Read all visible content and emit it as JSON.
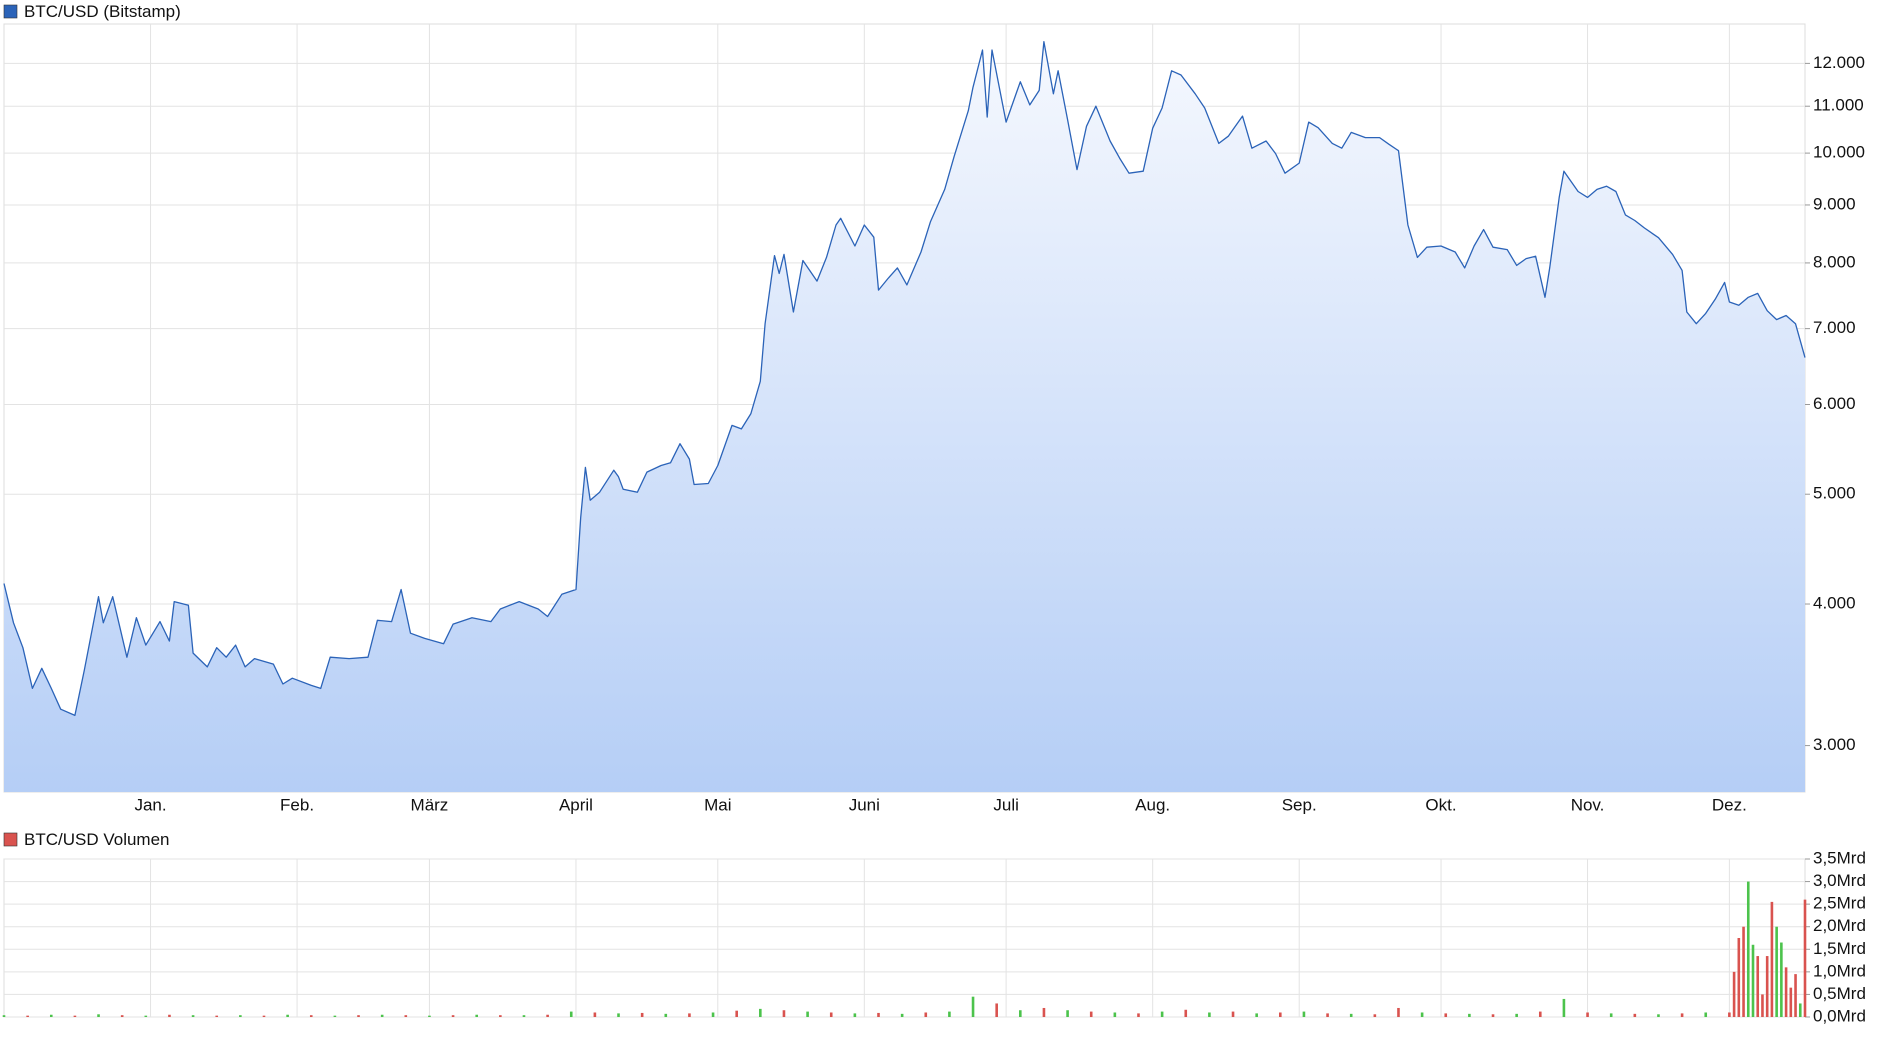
{
  "chart_data": [
    {
      "type": "area",
      "log_scale": true,
      "grid": true,
      "xlim": [
        0,
        381
      ],
      "xticks": [
        {
          "value": 31,
          "label": "Jan."
        },
        {
          "value": 62,
          "label": "Feb."
        },
        {
          "value": 90,
          "label": "März"
        },
        {
          "value": 121,
          "label": "April"
        },
        {
          "value": 151,
          "label": "Mai"
        },
        {
          "value": 182,
          "label": "Juni"
        },
        {
          "value": 212,
          "label": "Juli"
        },
        {
          "value": 243,
          "label": "Aug."
        },
        {
          "value": 274,
          "label": "Sep."
        },
        {
          "value": 304,
          "label": "Okt."
        },
        {
          "value": 335,
          "label": "Nov."
        },
        {
          "value": 365,
          "label": "Dez."
        }
      ],
      "ylim": [
        2730,
        13000
      ],
      "yticks": [
        {
          "value": 3000,
          "label": "3.000"
        },
        {
          "value": 4000,
          "label": "4.000"
        },
        {
          "value": 5000,
          "label": "5.000"
        },
        {
          "value": 6000,
          "label": "6.000"
        },
        {
          "value": 7000,
          "label": "7.000"
        },
        {
          "value": 8000,
          "label": "8.000"
        },
        {
          "value": 9000,
          "label": "9.000"
        },
        {
          "value": 10000,
          "label": "10.000"
        },
        {
          "value": 11000,
          "label": "11.000"
        },
        {
          "value": 12000,
          "label": "12.000"
        }
      ],
      "series": [
        {
          "name": "BTC/USD (Bitstamp)",
          "color": "#2b63b8",
          "x": [
            0,
            2,
            4,
            6,
            8,
            10,
            12,
            15,
            17,
            20,
            21,
            23,
            26,
            28,
            30,
            33,
            35,
            36,
            39,
            40,
            43,
            45,
            47,
            49,
            51,
            53,
            57,
            59,
            61,
            65,
            67,
            69,
            73,
            77,
            79,
            82,
            84,
            86,
            89,
            93,
            95,
            99,
            103,
            105,
            109,
            113,
            115,
            118,
            121,
            122,
            123,
            124,
            126,
            129,
            130,
            131,
            134,
            136,
            139,
            141,
            143,
            145,
            146,
            149,
            151,
            154,
            156,
            158,
            160,
            161,
            163,
            164,
            165,
            167,
            169,
            172,
            174,
            176,
            177,
            180,
            182,
            184,
            185,
            187,
            189,
            191,
            194,
            196,
            199,
            201,
            204,
            205,
            207,
            208,
            209,
            212,
            214,
            215,
            217,
            219,
            220,
            222,
            223,
            225,
            227,
            229,
            231,
            234,
            236,
            238,
            241,
            243,
            245,
            247,
            249,
            252,
            254,
            257,
            259,
            262,
            264,
            267,
            269,
            271,
            274,
            276,
            278,
            281,
            283,
            285,
            288,
            291,
            293,
            295,
            297,
            299,
            301,
            304,
            307,
            309,
            311,
            313,
            315,
            318,
            320,
            322,
            324,
            326,
            327,
            329,
            330,
            333,
            335,
            337,
            339,
            341,
            343,
            345,
            347,
            350,
            353,
            355,
            356,
            358,
            360,
            362,
            364,
            365,
            367,
            369,
            371,
            373,
            375,
            377,
            379,
            381
          ],
          "values": [
            4170,
            3850,
            3660,
            3370,
            3510,
            3370,
            3230,
            3190,
            3500,
            4060,
            3850,
            4060,
            3590,
            3890,
            3680,
            3860,
            3710,
            4020,
            3990,
            3620,
            3520,
            3660,
            3590,
            3680,
            3520,
            3580,
            3540,
            3400,
            3440,
            3390,
            3370,
            3590,
            3580,
            3590,
            3870,
            3860,
            4120,
            3770,
            3730,
            3690,
            3840,
            3890,
            3860,
            3960,
            4020,
            3960,
            3900,
            4080,
            4120,
            4770,
            5280,
            4940,
            5020,
            5250,
            5180,
            5050,
            5020,
            5230,
            5300,
            5330,
            5540,
            5370,
            5100,
            5110,
            5300,
            5750,
            5710,
            5890,
            6290,
            7070,
            8120,
            7830,
            8140,
            7240,
            8040,
            7710,
            8090,
            8640,
            8760,
            8280,
            8640,
            8430,
            7570,
            7750,
            7920,
            7650,
            8180,
            8700,
            9290,
            9930,
            10900,
            11430,
            12330,
            10760,
            12330,
            10650,
            11250,
            11560,
            11030,
            11360,
            12540,
            11280,
            11820,
            10700,
            9670,
            10560,
            11000,
            10250,
            9900,
            9600,
            9640,
            10520,
            10960,
            11820,
            11720,
            11280,
            10960,
            10200,
            10350,
            10780,
            10100,
            10250,
            9990,
            9600,
            9800,
            10650,
            10530,
            10200,
            10100,
            10430,
            10320,
            10320,
            10180,
            10050,
            8640,
            8090,
            8260,
            8280,
            8180,
            7920,
            8280,
            8560,
            8260,
            8220,
            7960,
            8070,
            8110,
            7460,
            7920,
            9140,
            9640,
            9250,
            9140,
            9290,
            9350,
            9250,
            8820,
            8720,
            8590,
            8420,
            8140,
            7880,
            7240,
            7070,
            7220,
            7430,
            7690,
            7390,
            7340,
            7460,
            7520,
            7260,
            7130,
            7190,
            7070,
            6600
          ]
        }
      ]
    },
    {
      "type": "bar",
      "grid": true,
      "xlim": [
        0,
        381
      ],
      "ylim": [
        0,
        3.5
      ],
      "yticks": [
        {
          "value": 0,
          "label": "0,0Mrd"
        },
        {
          "value": 0.5,
          "label": "0,5Mrd"
        },
        {
          "value": 1,
          "label": "1,0Mrd"
        },
        {
          "value": 1.5,
          "label": "1,5Mrd"
        },
        {
          "value": 2,
          "label": "2,0Mrd"
        },
        {
          "value": 2.5,
          "label": "2,5Mrd"
        },
        {
          "value": 3,
          "label": "3,0Mrd"
        },
        {
          "value": 3.5,
          "label": "3,5Mrd"
        }
      ],
      "series": [
        {
          "name": "BTC/USD Volumen",
          "color": "#d9534f",
          "x": [
            0,
            5,
            10,
            15,
            20,
            25,
            30,
            35,
            40,
            45,
            50,
            55,
            60,
            65,
            70,
            75,
            80,
            85,
            90,
            95,
            100,
            105,
            110,
            115,
            120,
            125,
            130,
            135,
            140,
            145,
            150,
            155,
            160,
            165,
            170,
            175,
            180,
            185,
            190,
            195,
            200,
            205,
            210,
            215,
            220,
            225,
            230,
            235,
            240,
            245,
            250,
            255,
            260,
            265,
            270,
            275,
            280,
            285,
            290,
            295,
            300,
            305,
            310,
            315,
            320,
            325,
            330,
            335,
            340,
            345,
            350,
            355,
            360,
            365,
            366,
            367,
            368,
            369,
            370,
            371,
            372,
            373,
            374,
            375,
            376,
            377,
            378,
            379,
            380,
            381
          ],
          "values": [
            0.04,
            0.03,
            0.05,
            0.03,
            0.06,
            0.04,
            0.03,
            0.05,
            0.04,
            0.03,
            0.04,
            0.03,
            0.05,
            0.04,
            0.03,
            0.04,
            0.05,
            0.04,
            0.03,
            0.04,
            0.05,
            0.04,
            0.04,
            0.05,
            0.12,
            0.1,
            0.08,
            0.09,
            0.07,
            0.08,
            0.1,
            0.14,
            0.18,
            0.15,
            0.12,
            0.1,
            0.08,
            0.09,
            0.07,
            0.1,
            0.12,
            0.45,
            0.3,
            0.15,
            0.2,
            0.15,
            0.12,
            0.1,
            0.08,
            0.12,
            0.16,
            0.1,
            0.12,
            0.08,
            0.1,
            0.12,
            0.08,
            0.07,
            0.06,
            0.2,
            0.1,
            0.08,
            0.07,
            0.06,
            0.07,
            0.12,
            0.4,
            0.1,
            0.08,
            0.07,
            0.06,
            0.08,
            0.1,
            0.1,
            1.0,
            1.75,
            2.0,
            3.0,
            1.6,
            1.35,
            0.5,
            1.35,
            2.55,
            2.0,
            1.65,
            1.1,
            0.65,
            0.95,
            0.3,
            2.6
          ],
          "bar_colors": [
            "#4cc34c",
            "#d9534f",
            "#4cc34c",
            "#d9534f",
            "#4cc34c",
            "#d9534f",
            "#4cc34c",
            "#d9534f",
            "#4cc34c",
            "#d9534f",
            "#4cc34c",
            "#d9534f",
            "#4cc34c",
            "#d9534f",
            "#4cc34c",
            "#d9534f",
            "#4cc34c",
            "#d9534f",
            "#4cc34c",
            "#d9534f",
            "#4cc34c",
            "#d9534f",
            "#4cc34c",
            "#d9534f",
            "#4cc34c",
            "#d9534f",
            "#4cc34c",
            "#d9534f",
            "#4cc34c",
            "#d9534f",
            "#4cc34c",
            "#d9534f",
            "#4cc34c",
            "#d9534f",
            "#4cc34c",
            "#d9534f",
            "#4cc34c",
            "#d9534f",
            "#4cc34c",
            "#d9534f",
            "#4cc34c",
            "#4cc34c",
            "#d9534f",
            "#4cc34c",
            "#d9534f",
            "#4cc34c",
            "#d9534f",
            "#4cc34c",
            "#d9534f",
            "#4cc34c",
            "#d9534f",
            "#4cc34c",
            "#d9534f",
            "#4cc34c",
            "#d9534f",
            "#4cc34c",
            "#d9534f",
            "#4cc34c",
            "#d9534f",
            "#d9534f",
            "#4cc34c",
            "#d9534f",
            "#4cc34c",
            "#d9534f",
            "#4cc34c",
            "#d9534f",
            "#4cc34c",
            "#d9534f",
            "#4cc34c",
            "#d9534f",
            "#4cc34c",
            "#d9534f",
            "#4cc34c",
            "#d9534f",
            "#d9534f",
            "#d9534f",
            "#d9534f",
            "#4cc34c",
            "#4cc34c",
            "#d9534f",
            "#d9534f",
            "#d9534f",
            "#d9534f",
            "#4cc34c",
            "#4cc34c",
            "#d9534f",
            "#d9534f",
            "#d9534f",
            "#4cc34c",
            "#d9534f"
          ]
        }
      ]
    }
  ]
}
